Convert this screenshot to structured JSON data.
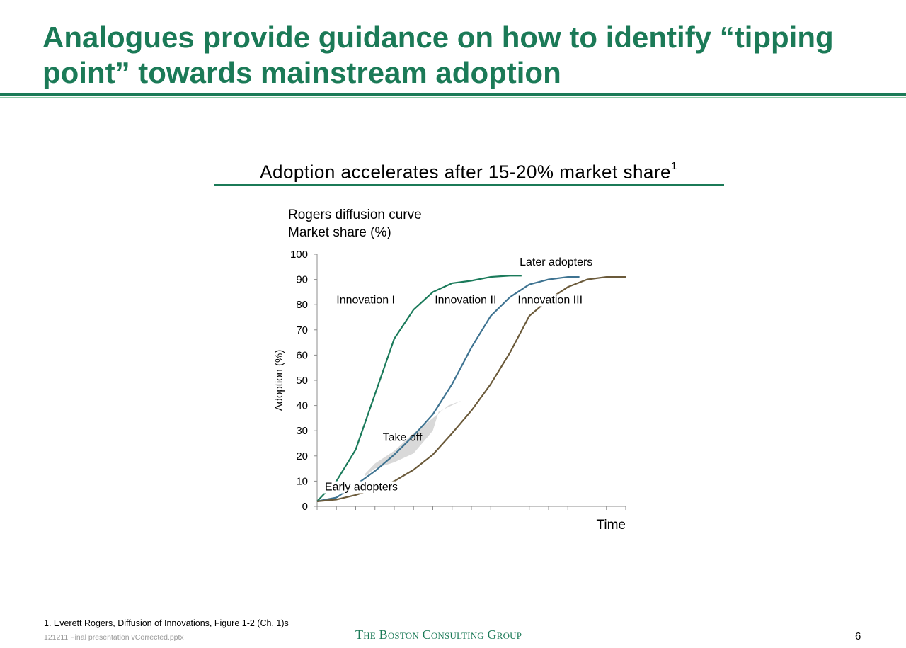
{
  "slide": {
    "title": "Analogues provide guidance on how to identify “tipping point” towards mainstream adoption",
    "section_heading": "Adoption accelerates after 15-20% market share",
    "section_heading_sup": "1",
    "footnote": "1. Everett Rogers, Diffusion of Innovations, Figure 1-2 (Ch. 1)s",
    "filename": "121211 Final presentation vCorrected.pptx",
    "logo": "The Boston Consulting Group",
    "page_number": "6"
  },
  "colors": {
    "brand_green": "#1b7a57",
    "innovation_1": "#1a7a5a",
    "innovation_2": "#3e7391",
    "innovation_3": "#6b5a3a",
    "takeoff_band": "#d9d9d9"
  },
  "chart_data": {
    "type": "line",
    "title": "Rogers diffusion curve",
    "subtitle": "Market share (%)",
    "xlabel": "Time",
    "ylabel": "Adoption (%)",
    "ylim": [
      0,
      100
    ],
    "yticks": [
      0,
      10,
      20,
      30,
      40,
      50,
      60,
      70,
      80,
      90,
      100
    ],
    "xlim": [
      0,
      16
    ],
    "x_tick_count": 17,
    "x_tick_labels_shown": false,
    "grid": false,
    "series": [
      {
        "name": "Innovation I",
        "color": "#1a7a5a",
        "x": [
          0,
          1,
          2,
          3,
          4,
          5,
          6,
          7,
          8,
          9,
          10,
          10.6
        ],
        "values": [
          2,
          10,
          22.5,
          44.5,
          66.5,
          78,
          85,
          88.5,
          89.5,
          91,
          91.5,
          91.5
        ]
      },
      {
        "name": "Innovation II",
        "color": "#3e7391",
        "x": [
          0,
          1,
          2,
          3,
          4,
          5,
          6,
          7,
          8,
          9,
          10,
          11,
          12,
          13,
          13.6
        ],
        "values": [
          2,
          3.5,
          8.5,
          14,
          20.5,
          28,
          36.5,
          48.5,
          63,
          75.5,
          83,
          88,
          90,
          91,
          91
        ]
      },
      {
        "name": "Innovation III",
        "color": "#6b5a3a",
        "x": [
          0,
          1,
          2,
          3,
          4,
          5,
          6,
          7,
          8,
          9,
          10,
          11,
          12,
          13,
          14,
          15,
          16
        ],
        "values": [
          2,
          2.7,
          4.5,
          7,
          10,
          14.5,
          20.5,
          29,
          38,
          48.5,
          61,
          75.5,
          82,
          87,
          90,
          91,
          91
        ]
      }
    ],
    "shaded_regions": [
      {
        "label": "Take off",
        "points": [
          [
            2.5,
            12
          ],
          [
            3,
            15
          ],
          [
            4,
            17.5
          ],
          [
            5,
            21
          ],
          [
            6,
            30
          ],
          [
            6.3,
            37.5
          ],
          [
            7.5,
            42
          ],
          [
            6.8,
            40
          ],
          [
            6,
            35
          ],
          [
            5,
            29
          ],
          [
            4,
            22
          ],
          [
            3,
            17
          ],
          [
            2.5,
            13
          ]
        ]
      }
    ],
    "annotations": [
      {
        "text": "Innovation I",
        "x": 1,
        "y": 80.5
      },
      {
        "text": "Innovation II",
        "x": 6.1,
        "y": 80.5
      },
      {
        "text": "Innovation III",
        "x": 10.4,
        "y": 80.5
      },
      {
        "text": "Later adopters",
        "x": 10.5,
        "y": 95.5
      },
      {
        "text": "Take off",
        "x": 3.4,
        "y": 26
      },
      {
        "text": "Early adopters",
        "x": 0.4,
        "y": 6.3
      }
    ]
  }
}
